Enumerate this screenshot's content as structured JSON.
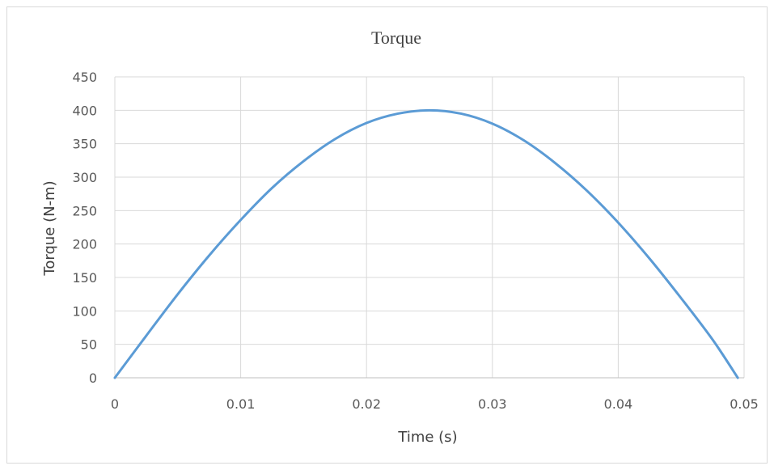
{
  "chart_data": {
    "type": "line",
    "title": "Torque",
    "xlabel": "Time (s)",
    "ylabel": "Torque (N-m)",
    "xlim": [
      0,
      0.05
    ],
    "ylim": [
      0,
      450
    ],
    "x_ticks": [
      "0",
      "0.01",
      "0.02",
      "0.03",
      "0.04",
      "0.05"
    ],
    "y_ticks": [
      "0",
      "50",
      "100",
      "150",
      "200",
      "250",
      "300",
      "350",
      "400",
      "450"
    ],
    "grid": true,
    "legend": "none",
    "series": [
      {
        "color": "#5b9bd5",
        "x": [
          0,
          0.0025,
          0.005,
          0.0075,
          0.01,
          0.0125,
          0.015,
          0.0175,
          0.02,
          0.0225,
          0.025,
          0.0275,
          0.03,
          0.0325,
          0.035,
          0.0375,
          0.04,
          0.0425,
          0.045,
          0.0475,
          0.0495
        ],
        "y": [
          0,
          63,
          125,
          183,
          236,
          284,
          324,
          357,
          381,
          395,
          400,
          395,
          380,
          355,
          321,
          280,
          232,
          178,
          119,
          57,
          0
        ]
      }
    ]
  }
}
